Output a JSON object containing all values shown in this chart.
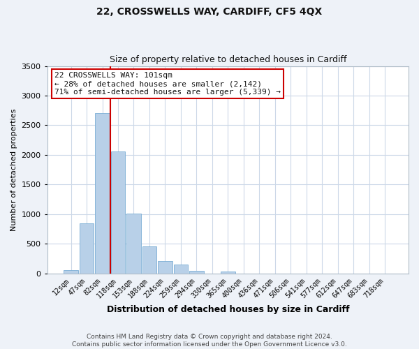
{
  "title": "22, CROSSWELLS WAY, CARDIFF, CF5 4QX",
  "subtitle": "Size of property relative to detached houses in Cardiff",
  "xlabel": "Distribution of detached houses by size in Cardiff",
  "ylabel": "Number of detached properties",
  "bin_labels": [
    "12sqm",
    "47sqm",
    "82sqm",
    "118sqm",
    "153sqm",
    "188sqm",
    "224sqm",
    "259sqm",
    "294sqm",
    "330sqm",
    "365sqm",
    "400sqm",
    "436sqm",
    "471sqm",
    "506sqm",
    "541sqm",
    "577sqm",
    "612sqm",
    "647sqm",
    "683sqm",
    "718sqm"
  ],
  "bar_heights": [
    60,
    850,
    2700,
    2060,
    1010,
    460,
    215,
    145,
    50,
    0,
    30,
    0,
    0,
    0,
    0,
    0,
    0,
    0,
    0,
    0,
    0
  ],
  "bar_color": "#b8d0e8",
  "bar_edge_color": "#7aadd4",
  "ylim": [
    0,
    3500
  ],
  "yticks": [
    0,
    500,
    1000,
    1500,
    2000,
    2500,
    3000,
    3500
  ],
  "vline_color": "#cc0000",
  "annotation_text": "22 CROSSWELLS WAY: 101sqm\n← 28% of detached houses are smaller (2,142)\n71% of semi-detached houses are larger (5,339) →",
  "annotation_box_color": "#ffffff",
  "annotation_box_edge": "#cc0000",
  "footer_text": "Contains HM Land Registry data © Crown copyright and database right 2024.\nContains public sector information licensed under the Open Government Licence v3.0.",
  "bg_color": "#eef2f8",
  "plot_bg_color": "#ffffff",
  "grid_color": "#ccd8e8",
  "title_fontsize": 10,
  "subtitle_fontsize": 9
}
